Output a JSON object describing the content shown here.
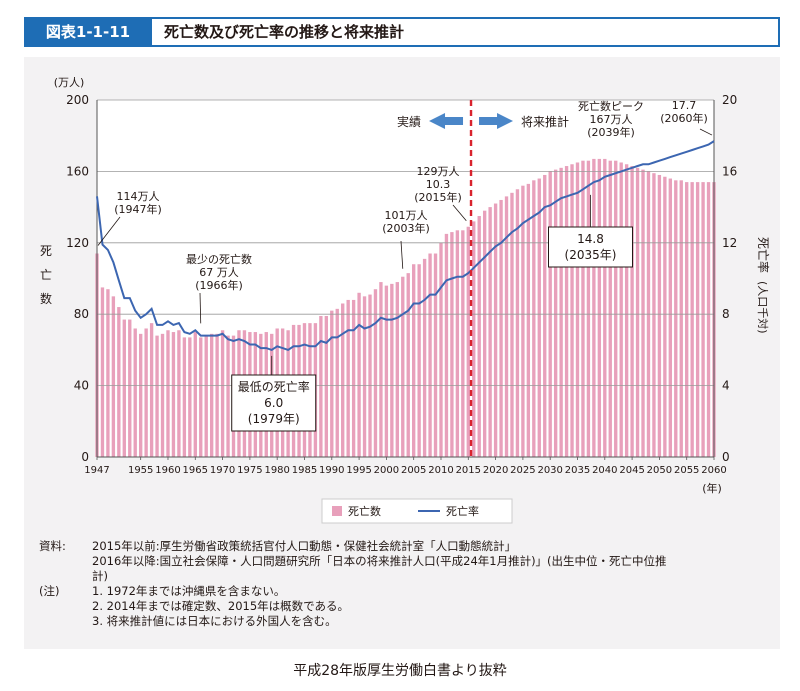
{
  "header": {
    "figure_label": "図表1-1-11",
    "title": "死亡数及び死亡率の推移と将来推計"
  },
  "chart_data": {
    "type": "bar",
    "y_left": {
      "unit": "(万人)",
      "label": "死亡数",
      "range": [
        0,
        200
      ],
      "ticks": [
        "0",
        "40",
        "80",
        "120",
        "160",
        "200"
      ]
    },
    "y_right": {
      "label": "死亡率",
      "label_sub": "(人口千対)",
      "range": [
        0,
        20
      ],
      "ticks": [
        "0",
        "4",
        "8",
        "12",
        "16",
        "20"
      ]
    },
    "x_axis": {
      "unit": "(年)",
      "range": [
        1947,
        2060
      ],
      "ticks": [
        "1947",
        "1955",
        "1960",
        "1965",
        "1970",
        "1975",
        "1980",
        "1985",
        "1990",
        "1995",
        "2000",
        "2005",
        "2010",
        "2015",
        "2020",
        "2025",
        "2030",
        "2035",
        "2040",
        "2045",
        "2050",
        "2055",
        "2060"
      ]
    },
    "divider_year": 2015.5,
    "arrows": {
      "left": "実績",
      "right": "将来推計"
    },
    "legend": {
      "bars": "死亡数",
      "line": "死亡率"
    },
    "deaths": {
      "name": "死亡数",
      "color": "#e8a0bb",
      "points": [
        [
          1947,
          114
        ],
        [
          1948,
          95
        ],
        [
          1949,
          94
        ],
        [
          1950,
          90
        ],
        [
          1951,
          84
        ],
        [
          1952,
          77
        ],
        [
          1953,
          77
        ],
        [
          1954,
          72
        ],
        [
          1955,
          69
        ],
        [
          1956,
          72
        ],
        [
          1957,
          75
        ],
        [
          1958,
          68
        ],
        [
          1959,
          69
        ],
        [
          1960,
          71
        ],
        [
          1961,
          70
        ],
        [
          1962,
          71
        ],
        [
          1963,
          67
        ],
        [
          1964,
          67
        ],
        [
          1965,
          70
        ],
        [
          1966,
          67
        ],
        [
          1967,
          68
        ],
        [
          1968,
          69
        ],
        [
          1969,
          69
        ],
        [
          1970,
          71
        ],
        [
          1971,
          68
        ],
        [
          1972,
          68
        ],
        [
          1973,
          71
        ],
        [
          1974,
          71
        ],
        [
          1975,
          70
        ],
        [
          1976,
          70
        ],
        [
          1977,
          69
        ],
        [
          1978,
          70
        ],
        [
          1979,
          69
        ],
        [
          1980,
          72
        ],
        [
          1981,
          72
        ],
        [
          1982,
          71
        ],
        [
          1983,
          74
        ],
        [
          1984,
          74
        ],
        [
          1985,
          75
        ],
        [
          1986,
          75
        ],
        [
          1987,
          75
        ],
        [
          1988,
          79
        ],
        [
          1989,
          79
        ],
        [
          1990,
          82
        ],
        [
          1991,
          83
        ],
        [
          1992,
          86
        ],
        [
          1993,
          88
        ],
        [
          1994,
          88
        ],
        [
          1995,
          92
        ],
        [
          1996,
          90
        ],
        [
          1997,
          91
        ],
        [
          1998,
          94
        ],
        [
          1999,
          98
        ],
        [
          2000,
          96
        ],
        [
          2001,
          97
        ],
        [
          2002,
          98
        ],
        [
          2003,
          101
        ],
        [
          2004,
          103
        ],
        [
          2005,
          108
        ],
        [
          2006,
          108
        ],
        [
          2007,
          111
        ],
        [
          2008,
          114
        ],
        [
          2009,
          114
        ],
        [
          2010,
          120
        ],
        [
          2011,
          125
        ],
        [
          2012,
          126
        ],
        [
          2013,
          127
        ],
        [
          2014,
          127
        ],
        [
          2015,
          129
        ],
        [
          2016,
          132
        ],
        [
          2017,
          135
        ],
        [
          2018,
          138
        ],
        [
          2019,
          140
        ],
        [
          2020,
          142
        ],
        [
          2021,
          144
        ],
        [
          2022,
          146
        ],
        [
          2023,
          148
        ],
        [
          2024,
          150
        ],
        [
          2025,
          152
        ],
        [
          2026,
          153
        ],
        [
          2027,
          155
        ],
        [
          2028,
          156
        ],
        [
          2029,
          158
        ],
        [
          2030,
          160
        ],
        [
          2031,
          161
        ],
        [
          2032,
          162
        ],
        [
          2033,
          163
        ],
        [
          2034,
          164
        ],
        [
          2035,
          165
        ],
        [
          2036,
          166
        ],
        [
          2037,
          166
        ],
        [
          2038,
          167
        ],
        [
          2039,
          167
        ],
        [
          2040,
          167
        ],
        [
          2041,
          166
        ],
        [
          2042,
          166
        ],
        [
          2043,
          165
        ],
        [
          2044,
          164
        ],
        [
          2045,
          163
        ],
        [
          2046,
          162
        ],
        [
          2047,
          161
        ],
        [
          2048,
          160
        ],
        [
          2049,
          159
        ],
        [
          2050,
          158
        ],
        [
          2051,
          157
        ],
        [
          2052,
          156
        ],
        [
          2053,
          155
        ],
        [
          2054,
          155
        ],
        [
          2055,
          154
        ],
        [
          2056,
          154
        ],
        [
          2057,
          154
        ],
        [
          2058,
          154
        ],
        [
          2059,
          154
        ],
        [
          2060,
          154
        ]
      ]
    },
    "rate": {
      "name": "死亡率",
      "color": "#3c66b1",
      "points": [
        [
          1947,
          14.6
        ],
        [
          1948,
          11.9
        ],
        [
          1949,
          11.6
        ],
        [
          1950,
          10.9
        ],
        [
          1951,
          9.9
        ],
        [
          1952,
          8.9
        ],
        [
          1953,
          8.9
        ],
        [
          1954,
          8.2
        ],
        [
          1955,
          7.8
        ],
        [
          1956,
          8.0
        ],
        [
          1957,
          8.3
        ],
        [
          1958,
          7.4
        ],
        [
          1959,
          7.4
        ],
        [
          1960,
          7.6
        ],
        [
          1961,
          7.4
        ],
        [
          1962,
          7.5
        ],
        [
          1963,
          7.0
        ],
        [
          1964,
          6.9
        ],
        [
          1965,
          7.1
        ],
        [
          1966,
          6.8
        ],
        [
          1967,
          6.8
        ],
        [
          1968,
          6.8
        ],
        [
          1969,
          6.8
        ],
        [
          1970,
          6.9
        ],
        [
          1971,
          6.6
        ],
        [
          1972,
          6.5
        ],
        [
          1973,
          6.6
        ],
        [
          1974,
          6.5
        ],
        [
          1975,
          6.3
        ],
        [
          1976,
          6.3
        ],
        [
          1977,
          6.1
        ],
        [
          1978,
          6.1
        ],
        [
          1979,
          6.0
        ],
        [
          1980,
          6.2
        ],
        [
          1981,
          6.1
        ],
        [
          1982,
          6.0
        ],
        [
          1983,
          6.2
        ],
        [
          1984,
          6.2
        ],
        [
          1985,
          6.3
        ],
        [
          1986,
          6.2
        ],
        [
          1987,
          6.2
        ],
        [
          1988,
          6.5
        ],
        [
          1989,
          6.4
        ],
        [
          1990,
          6.7
        ],
        [
          1991,
          6.7
        ],
        [
          1992,
          6.9
        ],
        [
          1993,
          7.1
        ],
        [
          1994,
          7.1
        ],
        [
          1995,
          7.4
        ],
        [
          1996,
          7.2
        ],
        [
          1997,
          7.3
        ],
        [
          1998,
          7.5
        ],
        [
          1999,
          7.8
        ],
        [
          2000,
          7.7
        ],
        [
          2001,
          7.7
        ],
        [
          2002,
          7.8
        ],
        [
          2003,
          8.0
        ],
        [
          2004,
          8.2
        ],
        [
          2005,
          8.6
        ],
        [
          2006,
          8.6
        ],
        [
          2007,
          8.8
        ],
        [
          2008,
          9.1
        ],
        [
          2009,
          9.1
        ],
        [
          2010,
          9.5
        ],
        [
          2011,
          9.9
        ],
        [
          2012,
          10.0
        ],
        [
          2013,
          10.1
        ],
        [
          2014,
          10.1
        ],
        [
          2015,
          10.3
        ],
        [
          2016,
          10.6
        ],
        [
          2017,
          10.9
        ],
        [
          2018,
          11.2
        ],
        [
          2019,
          11.5
        ],
        [
          2020,
          11.8
        ],
        [
          2021,
          12.0
        ],
        [
          2022,
          12.3
        ],
        [
          2023,
          12.6
        ],
        [
          2024,
          12.8
        ],
        [
          2025,
          13.1
        ],
        [
          2026,
          13.3
        ],
        [
          2027,
          13.5
        ],
        [
          2028,
          13.7
        ],
        [
          2029,
          14.0
        ],
        [
          2030,
          14.1
        ],
        [
          2031,
          14.3
        ],
        [
          2032,
          14.5
        ],
        [
          2033,
          14.6
        ],
        [
          2034,
          14.7
        ],
        [
          2035,
          14.8
        ],
        [
          2036,
          15.0
        ],
        [
          2037,
          15.2
        ],
        [
          2038,
          15.4
        ],
        [
          2039,
          15.5
        ],
        [
          2040,
          15.7
        ],
        [
          2041,
          15.8
        ],
        [
          2042,
          15.9
        ],
        [
          2043,
          16.0
        ],
        [
          2044,
          16.1
        ],
        [
          2045,
          16.2
        ],
        [
          2046,
          16.3
        ],
        [
          2047,
          16.4
        ],
        [
          2048,
          16.4
        ],
        [
          2049,
          16.5
        ],
        [
          2050,
          16.6
        ],
        [
          2051,
          16.7
        ],
        [
          2052,
          16.8
        ],
        [
          2053,
          16.9
        ],
        [
          2054,
          17.0
        ],
        [
          2055,
          17.1
        ],
        [
          2056,
          17.2
        ],
        [
          2057,
          17.3
        ],
        [
          2058,
          17.4
        ],
        [
          2059,
          17.5
        ],
        [
          2060,
          17.7
        ]
      ]
    },
    "annotations": [
      {
        "lines": [
          "114万人",
          "(1947年)"
        ],
        "year": 1947,
        "value": 114,
        "series": "deaths",
        "boxed": false
      },
      {
        "lines": [
          "最少の死亡数",
          "67 万人",
          "(1966年)"
        ],
        "year": 1966,
        "value": 67,
        "series": "deaths",
        "boxed": false
      },
      {
        "lines": [
          "最低の死亡率",
          "6.0",
          "(1979年)"
        ],
        "year": 1979,
        "value": 6.0,
        "series": "rate",
        "boxed": true
      },
      {
        "lines": [
          "101万人",
          "(2003年)"
        ],
        "year": 2003,
        "value": 101,
        "series": "deaths",
        "boxed": false
      },
      {
        "lines": [
          "129万人",
          "10.3",
          "(2015年)"
        ],
        "year": 2015,
        "value": 129,
        "series": "deaths",
        "boxed": false
      },
      {
        "lines": [
          "14.8",
          "(2035年)"
        ],
        "year": 2035,
        "value": 14.8,
        "series": "rate",
        "boxed": true
      },
      {
        "lines": [
          "死亡数ピーク",
          "167万人",
          "(2039年)"
        ],
        "year": 2039,
        "value": 167,
        "series": "deaths",
        "boxed": false
      },
      {
        "lines": [
          "17.7",
          "(2060年)"
        ],
        "year": 2060,
        "value": 17.7,
        "series": "rate",
        "boxed": false
      }
    ]
  },
  "notes": {
    "source_label": "資料:",
    "source_lines": [
      "2015年以前:厚生労働省政策統括官付人口動態・保健社会統計室「人口動態統計」",
      "2016年以降:国立社会保障・人口問題研究所「日本の将来推計人口(平成24年1月推計)」(出生中位・死亡中位推",
      "計)"
    ],
    "note_label": "(注)",
    "note_lines": [
      "1. 1972年までは沖縄県を含まない。",
      "2. 2014年までは確定数、2015年は概数である。",
      "3. 将来推計値には日本における外国人を含む。"
    ]
  },
  "source_note": "平成28年版厚生労働白書より抜粋"
}
